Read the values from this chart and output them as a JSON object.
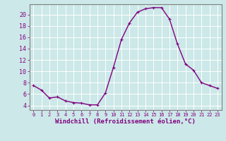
{
  "x": [
    0,
    1,
    2,
    3,
    4,
    5,
    6,
    7,
    8,
    9,
    10,
    11,
    12,
    13,
    14,
    15,
    16,
    17,
    18,
    19,
    20,
    21,
    22,
    23
  ],
  "y": [
    7.5,
    6.7,
    5.3,
    5.5,
    4.8,
    4.5,
    4.4,
    4.1,
    4.1,
    6.2,
    10.7,
    15.6,
    18.5,
    20.4,
    21.0,
    21.2,
    21.2,
    19.2,
    14.8,
    11.3,
    10.2,
    8.0,
    7.5,
    7.0
  ],
  "line_color": "#800080",
  "marker_color": "#800080",
  "bg_color": "#cce8e8",
  "grid_color": "#b0d8d8",
  "xlabel": "Windchill (Refroidissement éolien,°C)",
  "xlabel_color": "#800080",
  "tick_color": "#800080",
  "spine_color": "#808080",
  "ylim": [
    3.2,
    21.8
  ],
  "xlim": [
    -0.5,
    23.5
  ],
  "yticks": [
    4,
    6,
    8,
    10,
    12,
    14,
    16,
    18,
    20
  ],
  "xticks": [
    0,
    1,
    2,
    3,
    4,
    5,
    6,
    7,
    8,
    9,
    10,
    11,
    12,
    13,
    14,
    15,
    16,
    17,
    18,
    19,
    20,
    21,
    22,
    23
  ],
  "xtick_fontsize": 5.0,
  "ytick_fontsize": 6.0,
  "xlabel_fontsize": 6.5,
  "linewidth": 1.0,
  "markersize": 3.5
}
